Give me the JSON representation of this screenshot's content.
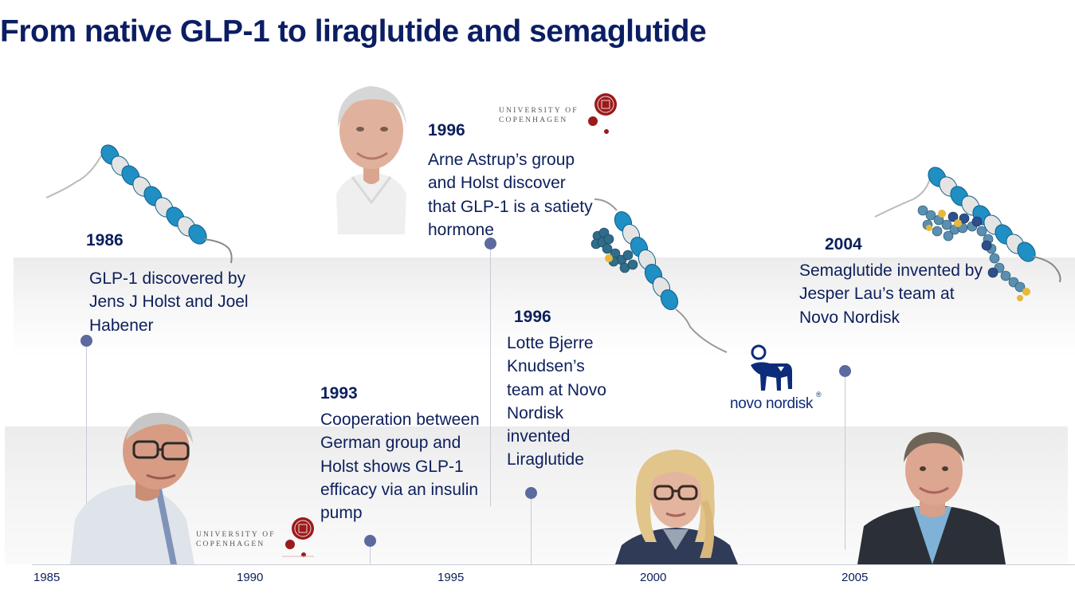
{
  "title": "From native GLP-1 to liraglutide and semaglutide",
  "events": [
    {
      "year": "1986",
      "text": "GLP-1 discovered by Jens J Holst and Joel Habener"
    },
    {
      "year": "1993",
      "text": "Cooperation between German group and Holst shows GLP-1 efficacy via an insulin pump"
    },
    {
      "year": "1996",
      "text": "Arne Astrup’s group and Holst discover that GLP-1 is a satiety hormone"
    },
    {
      "year": "1996",
      "text": "Lotte Bjerre Knudsen’s team at Novo Nordisk invented Liraglutide"
    },
    {
      "year": "2004",
      "text": "Semaglutide invented by Jesper Lau’s team at Novo Nordisk"
    }
  ],
  "axis_ticks": [
    "1985",
    "1990",
    "1995",
    "2000",
    "2005"
  ],
  "logos": {
    "university_line1": "UNIVERSITY OF",
    "university_line2": "COPENHAGEN",
    "novo_nordisk": "novo nordisk",
    "registered": "®"
  },
  "colors": {
    "title": "#0b1e63",
    "text": "#0c1f5c",
    "dot": "#5c6aa0",
    "helix": "#1f8fc4",
    "univ_red": "#9b1b1b"
  }
}
